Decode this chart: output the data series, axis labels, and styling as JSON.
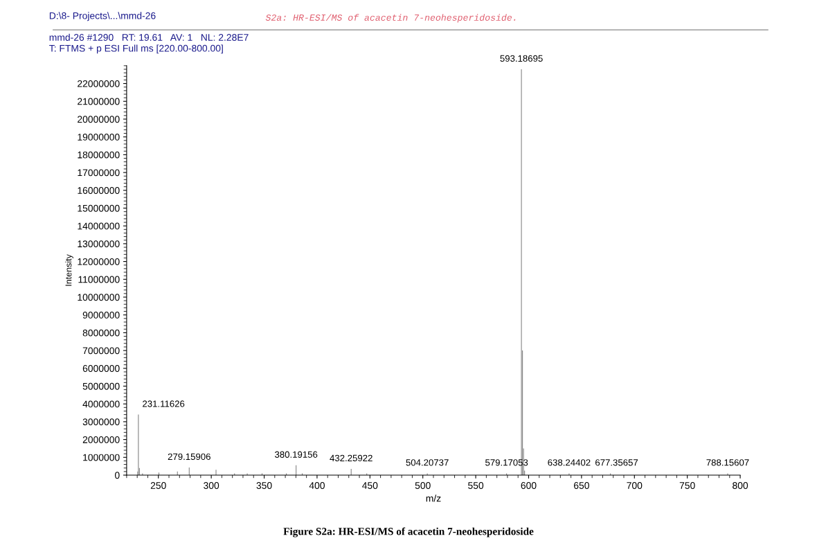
{
  "chart_data": {
    "type": "bar",
    "title": "S2a: HR-ESI/MS of acacetin 7-neohesperidoside.",
    "xlabel": "m/z",
    "ylabel": "Intensity",
    "x": [
      230.5,
      231.11626,
      232.1,
      235,
      250.5,
      268,
      279.15906,
      304.5,
      322,
      334,
      348,
      371,
      380.19156,
      386,
      432.25922,
      447,
      504.20737,
      579.17053,
      593.18695,
      594.19,
      595.19,
      596.2,
      638.24402,
      677.35657,
      788.15607
    ],
    "values": [
      200000,
      3400000,
      400000,
      100000,
      150000,
      200000,
      430000,
      300000,
      100000,
      100000,
      100000,
      100000,
      550000,
      100000,
      350000,
      100000,
      100000,
      100000,
      22800000,
      7000000,
      1500000,
      250000,
      100000,
      100000,
      100000
    ],
    "color": "#7f7f7f",
    "xlim": [
      220,
      800
    ],
    "xticks": [
      250,
      300,
      350,
      400,
      450,
      500,
      550,
      600,
      650,
      700,
      750,
      800
    ],
    "ylim": [
      0,
      23000000
    ],
    "yticks": [
      0,
      1000000,
      2000000,
      3000000,
      4000000,
      5000000,
      6000000,
      7000000,
      8000000,
      9000000,
      10000000,
      11000000,
      12000000,
      13000000,
      14000000,
      15000000,
      16000000,
      17000000,
      18000000,
      19000000,
      20000000,
      21000000,
      22000000
    ],
    "grid": false,
    "legend": false,
    "annotations": [
      "D:\\8- Projects\\...\\mmd-26",
      "mmd-26 #1290   RT: 19.61   AV: 1   NL: 2.28E7",
      "T: FTMS + p ESI Full ms [220.00-800.00]",
      "Figure S2a: HR-ESI/MS of acacetin 7-neohesperidoside",
      {
        "text": "231.11626",
        "x": 231.11626,
        "y": 3400000
      },
      {
        "text": "279.15906",
        "x": 279.15906,
        "y": 430000
      },
      {
        "text": "380.19156",
        "x": 380.19156,
        "y": 550000
      },
      {
        "text": "432.25922",
        "x": 432.25922,
        "y": 350000
      },
      {
        "text": "504.20737",
        "x": 504.20737,
        "y": 100000
      },
      {
        "text": "579.17053",
        "x": 579.17053,
        "y": 100000
      },
      {
        "text": "593.18695",
        "x": 593.18695,
        "y": 22800000
      },
      {
        "text": "638.24402",
        "x": 638.24402,
        "y": 100000
      },
      {
        "text": "677.35657",
        "x": 677.35657,
        "y": 100000
      },
      {
        "text": "788.15607",
        "x": 788.15607,
        "y": 100000
      }
    ]
  }
}
